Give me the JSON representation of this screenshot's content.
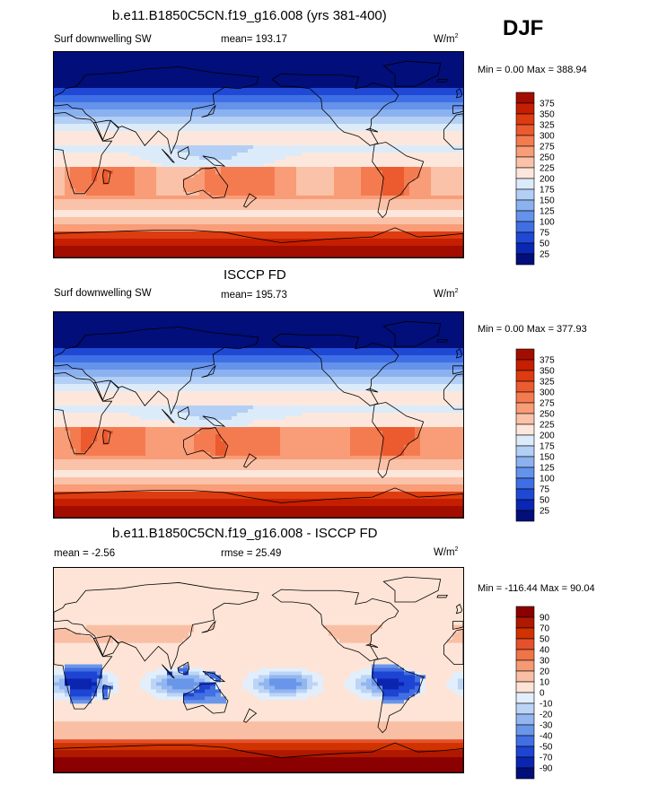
{
  "season": "DJF",
  "panels": [
    {
      "title": "b.e11.B1850C5CN.f19_g16.008 (yrs 381-400)",
      "left_label": "Surf downwelling SW",
      "center_label": "mean= 193.17",
      "units": "W/m",
      "units_exp": "2",
      "range_text": "Min =   0.00 Max = 388.94",
      "colorbar": {
        "labels": [
          "375",
          "350",
          "325",
          "300",
          "275",
          "250",
          "225",
          "200",
          "175",
          "150",
          "125",
          "100",
          "75",
          "50",
          "25"
        ],
        "colors": [
          "#a30d00",
          "#c51e00",
          "#dc3c0f",
          "#ec5a2f",
          "#f47b50",
          "#f89d78",
          "#fac2a8",
          "#fde7dc",
          "#dcebfa",
          "#b3cff5",
          "#8bb1ef",
          "#6592ea",
          "#3f6fe4",
          "#1f48d5",
          "#0a27b4",
          "#020e7a"
        ]
      },
      "map_type": "sw"
    },
    {
      "title": "ISCCP FD",
      "left_label": "Surf downwelling SW",
      "center_label": "mean= 195.73",
      "units": "W/m",
      "units_exp": "2",
      "range_text": "Min =   0.00 Max = 377.93",
      "colorbar": {
        "labels": [
          "375",
          "350",
          "325",
          "300",
          "275",
          "250",
          "225",
          "200",
          "175",
          "150",
          "125",
          "100",
          "75",
          "50",
          "25"
        ],
        "colors": [
          "#a30d00",
          "#c51e00",
          "#dc3c0f",
          "#ec5a2f",
          "#f47b50",
          "#f89d78",
          "#fac2a8",
          "#fde7dc",
          "#dcebfa",
          "#b3cff5",
          "#8bb1ef",
          "#6592ea",
          "#3f6fe4",
          "#1f48d5",
          "#0a27b4",
          "#020e7a"
        ]
      },
      "map_type": "sw2"
    },
    {
      "title": "b.e11.B1850C5CN.f19_g16.008 - ISCCP FD",
      "left_label": "mean =  -2.56",
      "center_label": "rmse =  25.49",
      "units": "W/m",
      "units_exp": "2",
      "range_text": "Min = -116.44 Max =  90.04",
      "colorbar": {
        "labels": [
          "90",
          "70",
          "50",
          "40",
          "30",
          "20",
          "10",
          "0",
          "-10",
          "-20",
          "-30",
          "-40",
          "-50",
          "-70",
          "-90"
        ],
        "colors": [
          "#8b0000",
          "#b01800",
          "#d03200",
          "#e4512a",
          "#ef7448",
          "#f59a73",
          "#f9bfa4",
          "#fde4d6",
          "#e2eefb",
          "#bcd5f6",
          "#93b6f0",
          "#6a96ea",
          "#426fe2",
          "#1d44d2",
          "#0b25b0",
          "#030f78"
        ]
      },
      "map_type": "diff"
    }
  ]
}
